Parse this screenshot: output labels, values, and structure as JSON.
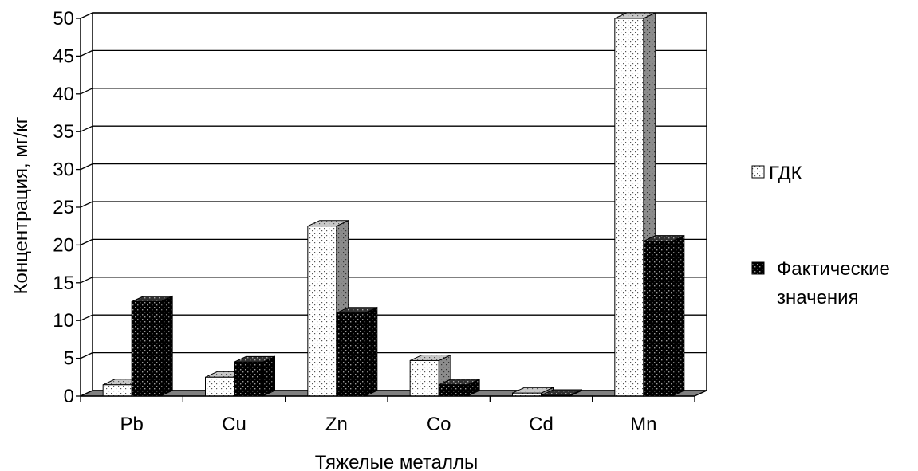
{
  "chart_data": {
    "type": "bar",
    "categories": [
      "Pb",
      "Cu",
      "Zn",
      "Co",
      "Cd",
      "Mn"
    ],
    "series": [
      {
        "name": "ГДК",
        "values": [
          1.5,
          2.5,
          22.5,
          4.7,
          0.4,
          50
        ]
      },
      {
        "name": "Фактические значения",
        "values": [
          12.5,
          4.5,
          11,
          1.5,
          0.1,
          20.5
        ]
      }
    ],
    "xlabel": "Тяжелые металлы",
    "ylabel": "Концентрация, мг/кг",
    "ylim": [
      0,
      50
    ],
    "yticks": [
      "0",
      "5",
      "10",
      "15",
      "20",
      "25",
      "30",
      "35",
      "40",
      "45",
      "50"
    ],
    "grid": true,
    "legend_position": "right",
    "legend": {
      "items": [
        {
          "lines": [
            "ГДК"
          ]
        },
        {
          "lines": [
            "Фактические",
            "значения"
          ]
        }
      ]
    },
    "colors": {
      "series1": "#ffffff",
      "series2": "#000000",
      "floor": "#808080"
    }
  }
}
